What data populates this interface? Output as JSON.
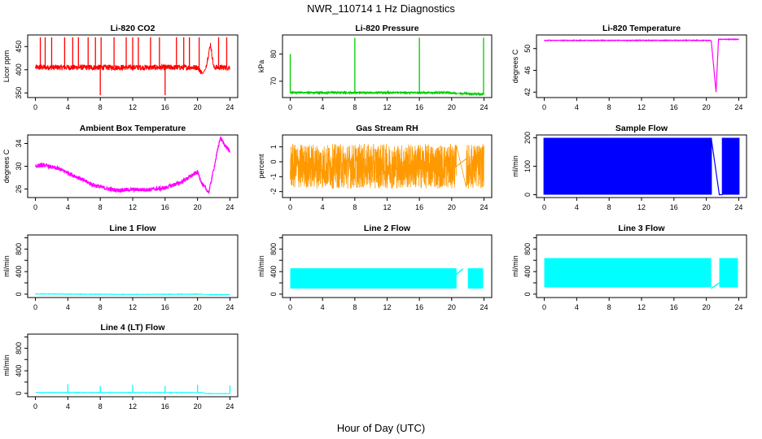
{
  "figure": {
    "title": "NWR_110714  1 Hz Diagnostics",
    "xlabel": "Hour of Day (UTC)"
  },
  "colors": {
    "red": "#ff0000",
    "green": "#00cc00",
    "magenta": "#ff00ff",
    "orange": "#ff9900",
    "blue": "#0000ff",
    "cyan": "#00ffff",
    "axis": "#000000"
  },
  "chart_data": [
    {
      "id": "co2",
      "type": "line",
      "title": "Li-820 CO2",
      "ylabel": "Licor ppm",
      "xlim": [
        0,
        24
      ],
      "ylim": [
        340,
        475
      ],
      "xticks": [
        0,
        4,
        8,
        12,
        16,
        20,
        24
      ],
      "yticks": [
        350,
        400,
        450
      ],
      "yticklabels": [
        "350",
        "400",
        "450"
      ],
      "color": "red",
      "baseline": 405,
      "noise": 6,
      "data_gap": [
        20.6,
        21.0
      ],
      "trend": [
        [
          20.0,
          405
        ],
        [
          20.4,
          396
        ],
        [
          20.8,
          385
        ],
        [
          21.6,
          455
        ],
        [
          22.0,
          405
        ],
        [
          24.0,
          405
        ]
      ],
      "spikes": [
        [
          0.6,
          470
        ],
        [
          1.2,
          470
        ],
        [
          2.0,
          470
        ],
        [
          3.6,
          470
        ],
        [
          4.6,
          470
        ],
        [
          5.3,
          470
        ],
        [
          6.5,
          470
        ],
        [
          7.4,
          470
        ],
        [
          8.0,
          345
        ],
        [
          8.1,
          470
        ],
        [
          9.7,
          470
        ],
        [
          11.2,
          470
        ],
        [
          12.0,
          470
        ],
        [
          12.7,
          470
        ],
        [
          14.2,
          470
        ],
        [
          15.3,
          470
        ],
        [
          16.0,
          345
        ],
        [
          17.4,
          470
        ],
        [
          18.3,
          470
        ],
        [
          19.0,
          470
        ],
        [
          20.2,
          470
        ],
        [
          22.6,
          470
        ],
        [
          23.6,
          470
        ]
      ],
      "series_count": 1
    },
    {
      "id": "pressure",
      "type": "line",
      "title": "Li-820 Pressure",
      "ylabel": "kPa",
      "xlim": [
        0,
        24
      ],
      "ylim": [
        64,
        87
      ],
      "xticks": [
        0,
        4,
        8,
        12,
        16,
        20,
        24
      ],
      "yticks": [
        70,
        80
      ],
      "yticklabels": [
        "70",
        "80"
      ],
      "color": "green",
      "baseline": 65.8,
      "noise": 0.3,
      "data_gap": [
        20.6,
        21.0
      ],
      "trend": [
        [
          20.0,
          65.6
        ],
        [
          23.6,
          65.3
        ],
        [
          24.0,
          65.3
        ]
      ],
      "spikes": [
        [
          0.0,
          80
        ],
        [
          8.0,
          86
        ],
        [
          16.0,
          86
        ],
        [
          23.95,
          86
        ]
      ],
      "series_count": 1
    },
    {
      "id": "licor_temp",
      "type": "line",
      "title": "Li-820 Temperature",
      "ylabel": "degrees C",
      "xlim": [
        0,
        24
      ],
      "ylim": [
        41,
        52.5
      ],
      "xticks": [
        0,
        4,
        8,
        12,
        16,
        20,
        24
      ],
      "yticks": [
        42,
        46,
        50
      ],
      "yticklabels": [
        "42",
        "46",
        "50"
      ],
      "color": "magenta",
      "baseline": 51.5,
      "noise": 0.05,
      "data_gap": [],
      "trend": [
        [
          20.6,
          51.5
        ],
        [
          21.2,
          42.0
        ],
        [
          21.5,
          51.7
        ],
        [
          24.0,
          51.7
        ]
      ],
      "spikes": [],
      "series_count": 1
    },
    {
      "id": "box_temp",
      "type": "line",
      "title": "Ambient Box Temperature",
      "ylabel": "degrees C",
      "xlim": [
        0,
        24
      ],
      "ylim": [
        24.5,
        35.5
      ],
      "xticks": [
        0,
        4,
        8,
        12,
        16,
        20,
        24
      ],
      "yticks": [
        26,
        30,
        34
      ],
      "yticklabels": [
        "26",
        "30",
        "34"
      ],
      "color": "magenta",
      "baseline": 30,
      "noise": 0.35,
      "data_gap": [],
      "trend": [
        [
          0,
          30.0
        ],
        [
          1,
          30.2
        ],
        [
          3,
          29.5
        ],
        [
          5,
          28.2
        ],
        [
          7,
          26.8
        ],
        [
          9,
          26.0
        ],
        [
          10,
          25.8
        ],
        [
          12,
          25.9
        ],
        [
          14,
          25.9
        ],
        [
          16,
          26.2
        ],
        [
          18,
          27.2
        ],
        [
          20,
          29.0
        ],
        [
          20.6,
          26.8
        ],
        [
          21.4,
          25.4
        ],
        [
          22.8,
          35.0
        ],
        [
          23.5,
          33.5
        ],
        [
          24,
          32.5
        ]
      ],
      "spikes": [],
      "series_count": 1
    },
    {
      "id": "rh",
      "type": "line",
      "title": "Gas Stream RH",
      "ylabel": "percent",
      "xlim": [
        0,
        24
      ],
      "ylim": [
        -2.4,
        1.8
      ],
      "xticks": [
        0,
        4,
        8,
        12,
        16,
        20,
        24
      ],
      "yticks": [
        -2,
        -1,
        0,
        1
      ],
      "yticklabels": [
        "-2",
        "-1",
        "0",
        "1"
      ],
      "color": "orange",
      "baseline": -0.3,
      "noise": 1.5,
      "data_gap": [
        20.6,
        21.8
      ],
      "trend": [
        [
          20.6,
          -0.3
        ],
        [
          21.8,
          0.2
        ],
        [
          24,
          -0.3
        ]
      ],
      "spikes": [],
      "series_count": 1
    },
    {
      "id": "sample_flow",
      "type": "line",
      "title": "Sample Flow",
      "ylabel": "ml/min",
      "xlim": [
        0,
        24
      ],
      "ylim": [
        -10,
        210
      ],
      "xticks": [
        0,
        4,
        8,
        12,
        16,
        20,
        24
      ],
      "yticks": [
        0,
        100,
        200
      ],
      "yticklabels": [
        "0",
        "100",
        "200"
      ],
      "color": "blue",
      "baseline": 100,
      "noise": 0,
      "data_gap": [
        20.6,
        22.0
      ],
      "trend": [
        [
          20.6,
          200
        ],
        [
          21.6,
          0
        ],
        [
          22.0,
          0
        ]
      ],
      "spikes": [],
      "series_count": 1
    },
    {
      "id": "line1",
      "type": "line",
      "title": "Line 1 Flow",
      "ylabel": "ml/min",
      "xlim": [
        0,
        24
      ],
      "ylim": [
        -60,
        1050
      ],
      "xticks": [
        0,
        4,
        8,
        12,
        16,
        20,
        24
      ],
      "yticks": [
        0,
        200,
        400,
        600,
        800,
        1000
      ],
      "yticklabels": [
        "0",
        "400",
        "800"
      ],
      "color": "cyan",
      "baseline": 5,
      "noise": 4,
      "data_gap": [
        20.6,
        21.4
      ],
      "trend": [
        [
          0,
          5
        ],
        [
          5,
          0
        ],
        [
          12,
          -5
        ],
        [
          20.4,
          0
        ],
        [
          21.4,
          -10
        ],
        [
          24,
          -10
        ]
      ],
      "spikes": [],
      "series_count": 1
    },
    {
      "id": "line2",
      "type": "line",
      "title": "Line 2 Flow",
      "ylabel": "ml/min",
      "xlim": [
        0,
        24
      ],
      "ylim": [
        -60,
        1050
      ],
      "xticks": [
        0,
        4,
        8,
        12,
        16,
        20,
        24
      ],
      "yticks": [
        0,
        200,
        400,
        600,
        800,
        1000
      ],
      "yticklabels": [
        "0",
        "400",
        "800"
      ],
      "color": "cyan",
      "baseline": 300,
      "noise": 0,
      "data_gap": [
        20.6,
        22.0
      ],
      "trend": [
        [
          20.6,
          350
        ],
        [
          21.4,
          450
        ]
      ],
      "spikes": [],
      "series_count": 1
    },
    {
      "id": "line3",
      "type": "line",
      "title": "Line 3 Flow",
      "ylabel": "ml/min",
      "xlim": [
        0,
        24
      ],
      "ylim": [
        -60,
        1050
      ],
      "xticks": [
        0,
        4,
        8,
        12,
        16,
        20,
        24
      ],
      "yticks": [
        0,
        200,
        400,
        600,
        800,
        1000
      ],
      "yticklabels": [
        "0",
        "400",
        "800"
      ],
      "color": "cyan",
      "baseline": 380,
      "noise": 0,
      "data_gap": [
        20.6,
        21.6
      ],
      "trend": [
        [
          20.6,
          100
        ],
        [
          21.6,
          200
        ]
      ],
      "spikes": [],
      "series_count": 1
    },
    {
      "id": "line4",
      "type": "line",
      "title": "Line 4 (LT) Flow",
      "ylabel": "ml/min",
      "xlim": [
        0,
        24
      ],
      "ylim": [
        -60,
        1050
      ],
      "xticks": [
        0,
        4,
        8,
        12,
        16,
        20,
        24
      ],
      "yticks": [
        0,
        200,
        400,
        600,
        800,
        1000
      ],
      "yticklabels": [
        "0",
        "400",
        "800"
      ],
      "color": "cyan",
      "baseline": 15,
      "noise": 3,
      "data_gap": [],
      "trend": [
        [
          20.6,
          15
        ],
        [
          21.0,
          -5
        ],
        [
          24,
          -5
        ]
      ],
      "spikes": [
        [
          4.0,
          160
        ],
        [
          8.0,
          130
        ],
        [
          12.0,
          150
        ],
        [
          16.0,
          130
        ],
        [
          20.0,
          150
        ],
        [
          24.0,
          140
        ]
      ],
      "series_count": 1
    }
  ]
}
